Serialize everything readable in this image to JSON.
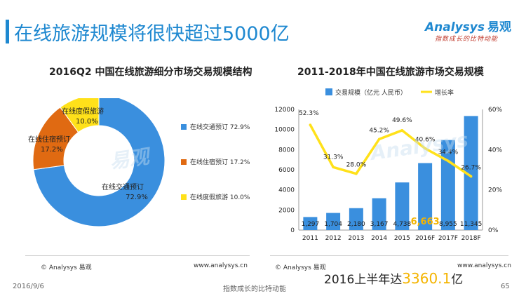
{
  "page": {
    "title": "在线旅游规模将很快超过5000亿",
    "logo_en": "nalysys",
    "logo_prefix": "A",
    "logo_cn": "易观",
    "slogan": "指数成长的比特动能",
    "date": "2016/9/6",
    "footer_center": "指数成长的比特动能",
    "page_number": "65",
    "highlight_prefix": "2016上半年达",
    "highlight_value": "3360.1",
    "highlight_suffix": "亿"
  },
  "left_panel": {
    "source_left": "© Analysys 易观",
    "source_right": "www.analysys.cn",
    "legend": [
      "在线交通预订 72.9%",
      "在线住宿预订 17.2%",
      "在线度假旅游 10.0%"
    ]
  },
  "right_panel": {
    "source_left": "© Analysys 易观",
    "source_right": "www.analysys.cn"
  },
  "colors": {
    "transport": "#3a8fde",
    "lodging": "#e06a12",
    "vacation": "#ffe11a",
    "bar": "#3a8fde",
    "line": "#ffe11a",
    "accent": "#1e88d0",
    "highlight": "#f4b400"
  },
  "chart_data": [
    {
      "type": "pie",
      "style": "donut",
      "title": "2016Q2 中国在线旅游细分市场交易规模结构",
      "categories": [
        "在线交通预订",
        "在线住宿预订",
        "在线度假旅游"
      ],
      "values": [
        72.9,
        17.2,
        10.0
      ],
      "labels": [
        {
          "name": "在线交通预订",
          "value": "72.9%"
        },
        {
          "name": "在线住宿预订",
          "value": "17.2%"
        },
        {
          "name": "在线度假旅游",
          "value": "10.0%"
        }
      ],
      "legend_position": "right"
    },
    {
      "type": "bar",
      "title": "2011-2018年中国在线旅游市场交易规模",
      "categories": [
        "2011",
        "2012",
        "2013",
        "2014",
        "2015",
        "2016F",
        "2017F",
        "2018F"
      ],
      "series": [
        {
          "name": "交易规模（亿元 人民币）",
          "type": "bar",
          "axis": "left",
          "values": [
            1297,
            1704,
            2180,
            3167,
            4738,
            6663,
            8955,
            11345
          ],
          "value_labels": [
            "1,297",
            "1,704",
            "2,180",
            "3,167",
            "4,738",
            "6,663",
            "8,955",
            "11,345"
          ]
        },
        {
          "name": "增长率",
          "type": "line",
          "axis": "right",
          "values": [
            52.3,
            31.3,
            28.0,
            45.2,
            49.6,
            40.6,
            34.4,
            26.7
          ],
          "value_labels": [
            "52.3%",
            "31.3%",
            "28.0%",
            "45.2%",
            "49.6%",
            "40.6%",
            "34.4%",
            "26.7%"
          ]
        }
      ],
      "ylim": [
        0,
        12000
      ],
      "yticks": [
        "0",
        "2000",
        "4000",
        "6000",
        "8000",
        "10000",
        "12000"
      ],
      "y2lim": [
        0,
        60
      ],
      "y2ticks": [
        "0%",
        "20%",
        "40%",
        "60%"
      ],
      "legend_position": "top",
      "highlighted_label": "6,663"
    }
  ]
}
